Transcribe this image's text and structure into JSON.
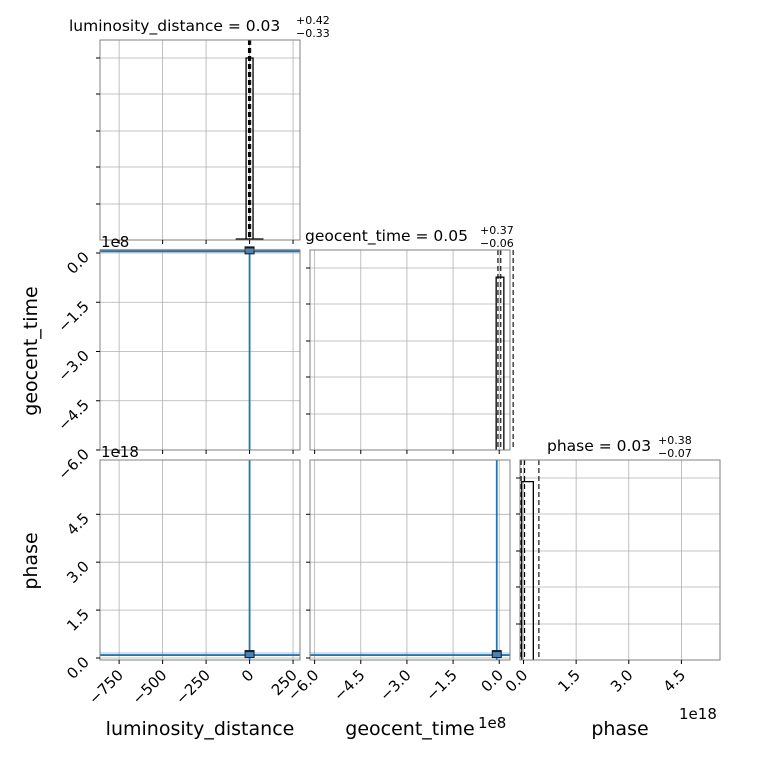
{
  "chart_data": {
    "type": "corner",
    "parameters": [
      "luminosity_distance",
      "geocent_time",
      "phase"
    ],
    "colors": {
      "hist": "#000000",
      "contour": "#1f77b4",
      "scatter": "#4682b4",
      "dense": "#1a1a1a",
      "grid": "#b0b0b0",
      "frame": "#808080"
    },
    "diagonal": [
      {
        "param": "luminosity_distance",
        "title_main": "luminosity_distance = 0.03",
        "title_plus": "+0.42",
        "title_minus": "−0.33",
        "xlim": [
          -860,
          290
        ],
        "bins": [
          {
            "x0": -20,
            "x1": 20,
            "h": 1.0
          }
        ],
        "baseline": [
          -80,
          80
        ],
        "median": 0.03,
        "quantiles": [
          -0.3,
          0.45
        ]
      },
      {
        "param": "geocent_time",
        "title_main": "geocent_time = 0.05",
        "title_plus": "+0.37",
        "title_minus": "−0.06",
        "xlim": [
          -6.15,
          0.35
        ],
        "bins": [
          {
            "x0": -0.1,
            "x1": 0.15,
            "h": 0.95
          }
        ],
        "median": 0.05,
        "quantiles": [
          -0.01,
          0.42
        ]
      },
      {
        "param": "phase",
        "title_main": "phase = 0.03",
        "title_plus": "+0.38",
        "title_minus": "−0.07",
        "xlim": [
          -0.1,
          5.6
        ],
        "bins": [
          {
            "x0": -0.05,
            "x1": 0.28,
            "h": 0.98
          }
        ],
        "median": 0.03,
        "quantiles": [
          -0.04,
          0.41
        ]
      }
    ],
    "axes": {
      "luminosity_distance": {
        "label": "luminosity_distance",
        "ticks": [
          -750,
          -500,
          -250,
          0,
          250
        ],
        "ticklabels": [
          "−750",
          "−500",
          "−250",
          "0",
          "250"
        ]
      },
      "geocent_time_x": {
        "label": "geocent_time",
        "offset": "1e8",
        "ticks": [
          -6.0,
          -4.5,
          -3.0,
          -1.5,
          0.0
        ],
        "ticklabels": [
          "−6.0",
          "−4.5",
          "−3.0",
          "−1.5",
          "0.0"
        ]
      },
      "geocent_time_y": {
        "label": "geocent_time",
        "offset": "1e8",
        "ylim": [
          -6.0,
          0.0
        ],
        "ticks": [
          0.0,
          -1.5,
          -3.0,
          -4.5,
          -6.0
        ],
        "ticklabels": [
          "0.0",
          "−1.5",
          "−3.0",
          "−4.5",
          "−6.0"
        ]
      },
      "phase_y": {
        "label": "phase",
        "offset": "1e18",
        "ylim": [
          0.0,
          6.2
        ],
        "ticks": [
          0.0,
          1.5,
          3.0,
          4.5
        ],
        "ticklabels": [
          "0.0",
          "1.5",
          "3.0",
          "4.5"
        ]
      },
      "phase_x": {
        "label": "phase",
        "offset": "1e18",
        "ticks": [
          0.0,
          1.5,
          3.0,
          4.5
        ],
        "ticklabels": [
          "0.0",
          "1.5",
          "3.0",
          "4.5"
        ]
      }
    },
    "points": {
      "luminosity_distance": 0.03,
      "geocent_time": 0.05,
      "phase": 0.03
    }
  }
}
